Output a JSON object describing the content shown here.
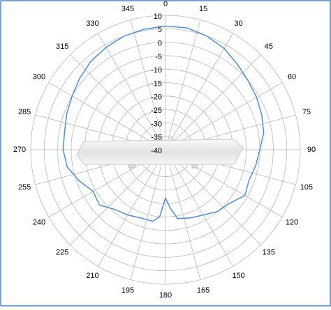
{
  "chart_data": {
    "type": "polar",
    "x": [
      0,
      10,
      20,
      30,
      40,
      50,
      60,
      70,
      80,
      90,
      100,
      110,
      120,
      130,
      140,
      150,
      160,
      170,
      175,
      180,
      185,
      190,
      200,
      210,
      220,
      230,
      240,
      250,
      260,
      270,
      280,
      290,
      300,
      310,
      320,
      330,
      340,
      350,
      360
    ],
    "series": [
      {
        "color": "#4a90d9",
        "values": [
          6,
          6,
          5,
          3.5,
          1.5,
          0,
          -1,
          -2,
          -3,
          -5,
          -6,
          -7,
          -6,
          -9,
          -10,
          -12,
          -13,
          -14,
          -18,
          -22,
          -15,
          -13,
          -13,
          -12,
          -11,
          -8,
          -9,
          -6,
          -3,
          -2,
          -2,
          -1,
          0,
          1.5,
          3,
          4,
          5,
          5.5,
          6
        ]
      }
    ],
    "xlim": [
      0,
      360
    ],
    "xticks": [
      0,
      15,
      30,
      45,
      60,
      75,
      90,
      105,
      120,
      135,
      150,
      165,
      180,
      195,
      210,
      225,
      240,
      255,
      270,
      285,
      300,
      315,
      330,
      345
    ],
    "ylim": [
      -40,
      10
    ],
    "yticks": [
      -40,
      -35,
      -30,
      -25,
      -20,
      -15,
      -10,
      -5,
      0,
      5,
      10
    ],
    "grid": true
  }
}
